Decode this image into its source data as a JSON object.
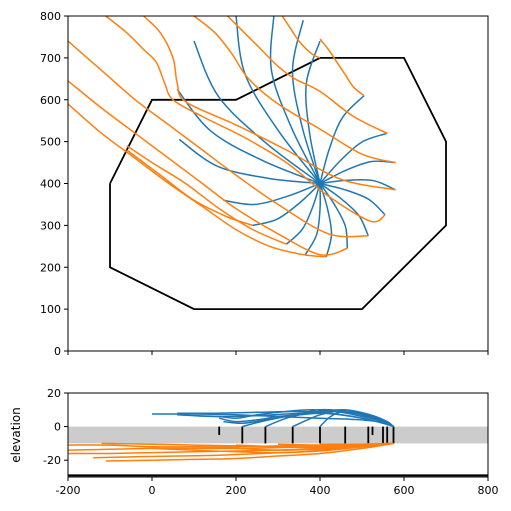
{
  "chart_data": [
    {
      "type": "line",
      "title": "",
      "xlabel": "",
      "ylabel": "",
      "xlim": [
        -200,
        800
      ],
      "ylim": [
        0,
        800
      ],
      "xticks": [
        "-200",
        "0",
        "200",
        "400",
        "600",
        "800"
      ],
      "yticks": [
        "0",
        "100",
        "200",
        "300",
        "400",
        "500",
        "600",
        "700",
        "800"
      ],
      "xtick_labels_visible": false,
      "grid": false,
      "colors": {
        "blue": "#1f77b4",
        "orange": "#ff7f0e",
        "boundary": "#000000"
      },
      "boundary": [
        [
          -100,
          400
        ],
        [
          0,
          600
        ],
        [
          200,
          600
        ],
        [
          400,
          700
        ],
        [
          600,
          700
        ],
        [
          700,
          500
        ],
        [
          700,
          300
        ],
        [
          500,
          100
        ],
        [
          100,
          100
        ],
        [
          -100,
          200
        ],
        [
          -100,
          400
        ]
      ],
      "center": [
        400,
        400
      ],
      "blue_end_points": [
        [
          200,
          800
        ],
        [
          290,
          800
        ],
        [
          360,
          790
        ],
        [
          400,
          740
        ],
        [
          505,
          610
        ],
        [
          560,
          520
        ],
        [
          580,
          450
        ],
        [
          580,
          385
        ],
        [
          555,
          325
        ],
        [
          515,
          275
        ],
        [
          465,
          245
        ],
        [
          415,
          225
        ],
        [
          365,
          230
        ],
        [
          320,
          255
        ],
        [
          240,
          300
        ],
        [
          170,
          360
        ],
        [
          65,
          505
        ],
        [
          60,
          625
        ],
        [
          100,
          740
        ]
      ],
      "orange_lines": [
        [
          [
            -200,
            740
          ],
          [
            -120,
            670
          ],
          [
            -40,
            600
          ],
          [
            40,
            540
          ],
          [
            120,
            480
          ],
          [
            200,
            420
          ],
          [
            300,
            350
          ],
          [
            420,
            280
          ],
          [
            515,
            275
          ]
        ],
        [
          [
            -200,
            645
          ],
          [
            -120,
            580
          ],
          [
            -40,
            520
          ],
          [
            40,
            460
          ],
          [
            120,
            400
          ],
          [
            200,
            340
          ],
          [
            300,
            280
          ],
          [
            400,
            230
          ],
          [
            465,
            245
          ]
        ],
        [
          [
            -200,
            590
          ],
          [
            -120,
            520
          ],
          [
            -40,
            460
          ],
          [
            40,
            400
          ],
          [
            120,
            345
          ],
          [
            200,
            290
          ],
          [
            280,
            250
          ],
          [
            360,
            230
          ],
          [
            415,
            225
          ]
        ],
        [
          [
            -60,
            490
          ],
          [
            0,
            450
          ],
          [
            80,
            400
          ],
          [
            160,
            340
          ],
          [
            240,
            290
          ],
          [
            320,
            255
          ]
        ],
        [
          [
            -60,
            480
          ],
          [
            20,
            420
          ],
          [
            100,
            360
          ],
          [
            180,
            320
          ],
          [
            240,
            300
          ]
        ],
        [
          [
            -110,
            800
          ],
          [
            -60,
            760
          ],
          [
            -20,
            720
          ],
          [
            10,
            690
          ],
          [
            30,
            640
          ],
          [
            50,
            600
          ],
          [
            120,
            560
          ],
          [
            220,
            510
          ],
          [
            320,
            450
          ],
          [
            420,
            370
          ],
          [
            520,
            310
          ],
          [
            555,
            325
          ]
        ],
        [
          [
            -20,
            800
          ],
          [
            20,
            760
          ],
          [
            50,
            700
          ],
          [
            60,
            640
          ],
          [
            80,
            595
          ],
          [
            200,
            540
          ],
          [
            320,
            480
          ],
          [
            450,
            410
          ],
          [
            580,
            385
          ]
        ],
        [
          [
            100,
            800
          ],
          [
            150,
            760
          ],
          [
            190,
            710
          ],
          [
            230,
            650
          ],
          [
            300,
            590
          ],
          [
            400,
            530
          ],
          [
            500,
            470
          ],
          [
            580,
            450
          ]
        ],
        [
          [
            180,
            800
          ],
          [
            220,
            760
          ],
          [
            260,
            720
          ],
          [
            300,
            680
          ],
          [
            340,
            650
          ],
          [
            400,
            620
          ],
          [
            480,
            560
          ],
          [
            560,
            520
          ]
        ],
        [
          [
            310,
            800
          ],
          [
            330,
            770
          ],
          [
            350,
            740
          ],
          [
            380,
            710
          ],
          [
            400,
            700
          ]
        ],
        [
          [
            400,
            745
          ],
          [
            420,
            720
          ],
          [
            440,
            690
          ],
          [
            460,
            660
          ],
          [
            480,
            630
          ],
          [
            505,
            610
          ]
        ]
      ]
    },
    {
      "type": "line",
      "title": "",
      "xlabel": "",
      "ylabel": "elevation",
      "xlim": [
        -200,
        800
      ],
      "ylim": [
        -30,
        20
      ],
      "xticks": [
        "-200",
        "0",
        "200",
        "400",
        "600",
        "800"
      ],
      "yticks": [
        "-20",
        "0",
        "20"
      ],
      "band": [
        -10,
        0
      ],
      "bottom_line": -29,
      "vertical_ticks": [
        [
          160,
          -5,
          0
        ],
        [
          215,
          -10,
          0
        ],
        [
          270,
          -10,
          0
        ],
        [
          335,
          -10,
          0
        ],
        [
          400,
          -10,
          0
        ],
        [
          460,
          -10,
          0
        ],
        [
          515,
          -10,
          0
        ],
        [
          525,
          -5,
          0
        ],
        [
          550,
          -10,
          0
        ],
        [
          560,
          -10,
          0
        ],
        [
          575,
          -10,
          0
        ]
      ],
      "blue_lines": [
        [
          [
            0,
            7.5
          ],
          [
            100,
            7.5
          ],
          [
            200,
            7
          ],
          [
            300,
            6
          ],
          [
            400,
            5
          ],
          [
            500,
            4
          ],
          [
            560,
            2
          ],
          [
            575,
            0
          ]
        ],
        [
          [
            60,
            8
          ],
          [
            150,
            8
          ],
          [
            250,
            8.5
          ],
          [
            350,
            9
          ],
          [
            420,
            8
          ],
          [
            500,
            5
          ],
          [
            550,
            2
          ],
          [
            575,
            0
          ]
        ],
        [
          [
            60,
            7
          ],
          [
            150,
            6
          ],
          [
            250,
            6.5
          ],
          [
            350,
            8
          ],
          [
            450,
            9
          ],
          [
            520,
            6
          ],
          [
            560,
            2
          ],
          [
            575,
            0
          ]
        ],
        [
          [
            100,
            6.5
          ],
          [
            160,
            6
          ],
          [
            200,
            5
          ],
          [
            250,
            7
          ],
          [
            320,
            9
          ],
          [
            380,
            10
          ],
          [
            440,
            9
          ],
          [
            500,
            6
          ],
          [
            550,
            3
          ],
          [
            575,
            0
          ]
        ],
        [
          [
            160,
            5
          ],
          [
            200,
            3
          ],
          [
            250,
            4
          ],
          [
            300,
            6
          ],
          [
            350,
            7
          ],
          [
            400,
            8
          ],
          [
            450,
            7
          ],
          [
            500,
            5
          ],
          [
            550,
            2
          ],
          [
            575,
            0
          ]
        ],
        [
          [
            170,
            3
          ],
          [
            215,
            2
          ],
          [
            270,
            4
          ],
          [
            340,
            7
          ],
          [
            400,
            10
          ],
          [
            460,
            9
          ],
          [
            515,
            6
          ],
          [
            560,
            2
          ],
          [
            575,
            0
          ]
        ],
        [
          [
            215,
            0
          ],
          [
            260,
            3
          ],
          [
            320,
            6
          ],
          [
            380,
            8
          ],
          [
            420,
            10
          ],
          [
            480,
            8
          ],
          [
            540,
            4
          ],
          [
            575,
            0
          ]
        ],
        [
          [
            270,
            0
          ],
          [
            320,
            5
          ],
          [
            370,
            8
          ],
          [
            400,
            9
          ],
          [
            460,
            10
          ],
          [
            520,
            7
          ],
          [
            560,
            3
          ],
          [
            575,
            0
          ]
        ],
        [
          [
            335,
            0
          ],
          [
            370,
            4
          ],
          [
            400,
            7
          ],
          [
            440,
            9
          ],
          [
            500,
            8
          ],
          [
            550,
            4
          ],
          [
            575,
            0
          ]
        ],
        [
          [
            400,
            0
          ],
          [
            420,
            5
          ],
          [
            440,
            8
          ],
          [
            460,
            9
          ],
          [
            500,
            8
          ],
          [
            550,
            4
          ],
          [
            575,
            0
          ]
        ]
      ],
      "orange_lines": [
        [
          [
            -200,
            -11
          ],
          [
            -100,
            -11
          ],
          [
            0,
            -12
          ],
          [
            100,
            -12
          ],
          [
            200,
            -12
          ],
          [
            300,
            -11.5
          ],
          [
            400,
            -11
          ],
          [
            500,
            -10.5
          ],
          [
            575,
            -10
          ]
        ],
        [
          [
            -200,
            -14
          ],
          [
            -100,
            -13.5
          ],
          [
            0,
            -13
          ],
          [
            100,
            -13
          ],
          [
            200,
            -13
          ],
          [
            300,
            -12.5
          ],
          [
            400,
            -12
          ],
          [
            500,
            -11
          ],
          [
            575,
            -10
          ]
        ],
        [
          [
            -200,
            -16
          ],
          [
            -100,
            -16
          ],
          [
            0,
            -15.5
          ],
          [
            100,
            -15
          ],
          [
            200,
            -14.5
          ],
          [
            300,
            -14
          ],
          [
            400,
            -13
          ],
          [
            500,
            -11.5
          ],
          [
            575,
            -10
          ]
        ],
        [
          [
            -140,
            -18.5
          ],
          [
            -40,
            -18
          ],
          [
            60,
            -17.5
          ],
          [
            160,
            -17
          ],
          [
            260,
            -16
          ],
          [
            360,
            -15
          ],
          [
            460,
            -13
          ],
          [
            575,
            -10
          ]
        ],
        [
          [
            -110,
            -20.5
          ],
          [
            0,
            -20
          ],
          [
            100,
            -19.5
          ],
          [
            200,
            -19
          ],
          [
            300,
            -17.5
          ],
          [
            400,
            -16
          ],
          [
            500,
            -13
          ],
          [
            575,
            -10
          ]
        ],
        [
          [
            -120,
            -10
          ],
          [
            0,
            -10.5
          ],
          [
            100,
            -11
          ],
          [
            200,
            -11.5
          ],
          [
            300,
            -12
          ],
          [
            400,
            -12
          ],
          [
            500,
            -11
          ],
          [
            575,
            -10
          ]
        ],
        [
          [
            0,
            -13
          ],
          [
            100,
            -14
          ],
          [
            200,
            -15
          ],
          [
            300,
            -15.5
          ],
          [
            400,
            -14.5
          ],
          [
            500,
            -12
          ],
          [
            575,
            -10
          ]
        ],
        [
          [
            100,
            -12
          ],
          [
            200,
            -13
          ],
          [
            300,
            -14
          ],
          [
            400,
            -13.5
          ],
          [
            500,
            -12
          ],
          [
            575,
            -10
          ]
        ],
        [
          [
            200,
            -11
          ],
          [
            300,
            -12
          ],
          [
            400,
            -12.5
          ],
          [
            500,
            -11.5
          ],
          [
            575,
            -10
          ]
        ],
        [
          [
            300,
            -10.5
          ],
          [
            400,
            -11
          ],
          [
            500,
            -11
          ],
          [
            575,
            -10
          ]
        ],
        [
          [
            400,
            -10.5
          ],
          [
            500,
            -10.5
          ],
          [
            575,
            -10
          ]
        ]
      ]
    }
  ]
}
